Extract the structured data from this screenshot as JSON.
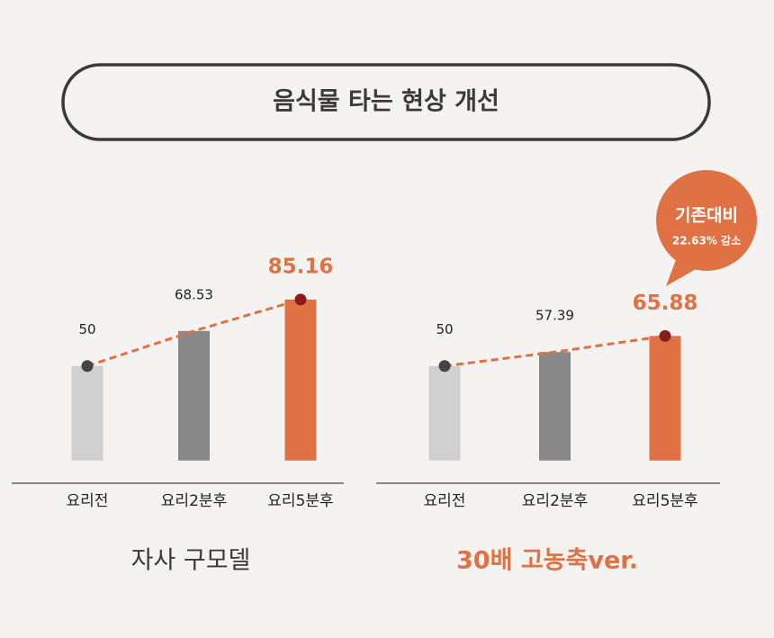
{
  "header": {
    "title": "음식물 타는 현상 개선"
  },
  "chart_data": [
    {
      "type": "bar",
      "title": "자사 구모델",
      "categories": [
        "요리전",
        "요리2분후",
        "요리5분후"
      ],
      "values": [
        50,
        68.53,
        85.16
      ],
      "colors": [
        "#d0d0d0",
        "#888888",
        "#e07145"
      ],
      "ylim": [
        -12,
        107
      ],
      "trend_line": true,
      "title_color": "#3a3a3a"
    },
    {
      "type": "bar",
      "title": "30배 고농축ver.",
      "categories": [
        "요리전",
        "요리2분후",
        "요리5분후"
      ],
      "values": [
        50,
        57.39,
        65.88
      ],
      "colors": [
        "#d0d0d0",
        "#888888",
        "#e07145"
      ],
      "ylim": [
        -12,
        107
      ],
      "trend_line": true,
      "title_color": "#e07145",
      "annotation": [
        "기존대비",
        "22.63% 감소"
      ]
    }
  ]
}
